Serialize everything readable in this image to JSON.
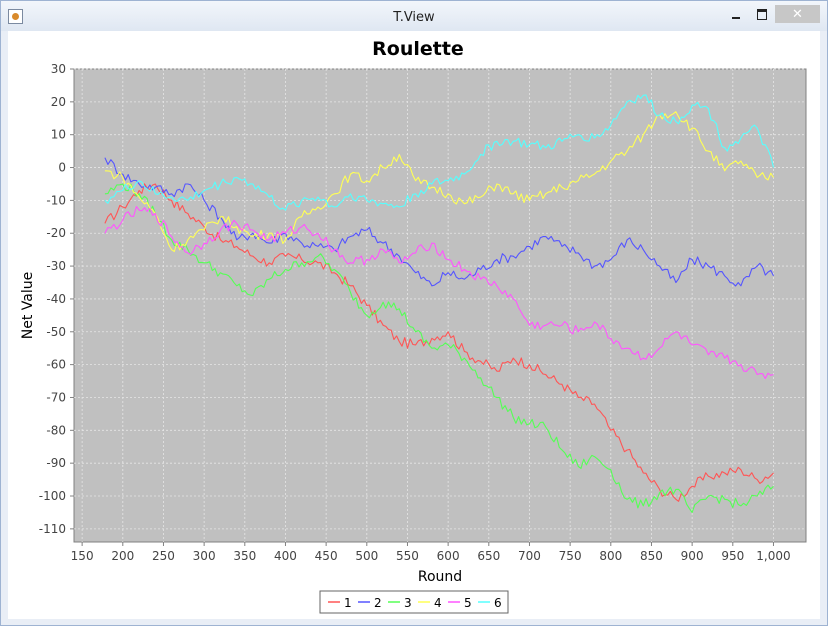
{
  "window": {
    "title": "T.View",
    "close_glyph": "✕"
  },
  "chart_data": {
    "type": "line",
    "title": "Roulette",
    "xlabel": "Round",
    "ylabel": "Net Value",
    "xlim": [
      140,
      1040
    ],
    "ylim": [
      -114,
      30
    ],
    "xticks": [
      150,
      200,
      250,
      300,
      350,
      400,
      450,
      500,
      550,
      600,
      650,
      700,
      750,
      800,
      850,
      900,
      950,
      1000
    ],
    "xtick_labels": [
      "150",
      "200",
      "250",
      "300",
      "350",
      "400",
      "450",
      "500",
      "550",
      "600",
      "650",
      "700",
      "750",
      "800",
      "850",
      "900",
      "950",
      "1,000"
    ],
    "yticks": [
      30,
      20,
      10,
      0,
      -10,
      -20,
      -30,
      -40,
      -50,
      -60,
      -70,
      -80,
      -90,
      -100,
      -110
    ],
    "grid": true,
    "background": "#c0c0c0",
    "legend_position": "bottom-center",
    "series": [
      {
        "name": "1",
        "color": "#ff5555",
        "x": [
          178,
          200,
          220,
          240,
          260,
          280,
          300,
          320,
          340,
          360,
          380,
          400,
          420,
          440,
          460,
          480,
          500,
          520,
          540,
          560,
          580,
          600,
          620,
          640,
          660,
          680,
          700,
          720,
          740,
          760,
          780,
          800,
          820,
          840,
          860,
          880,
          900,
          920,
          940,
          960,
          980,
          1000
        ],
        "y": [
          -17,
          -12,
          -7,
          -5,
          -10,
          -14,
          -18,
          -22,
          -24,
          -27,
          -29,
          -27,
          -28,
          -29,
          -32,
          -36,
          -42,
          -48,
          -53,
          -54,
          -52,
          -50,
          -56,
          -59,
          -62,
          -58,
          -60,
          -63,
          -66,
          -70,
          -72,
          -80,
          -86,
          -93,
          -98,
          -101,
          -97,
          -94,
          -93,
          -92,
          -95,
          -93
        ]
      },
      {
        "name": "2",
        "color": "#5555ff",
        "x": [
          178,
          200,
          220,
          240,
          260,
          280,
          300,
          320,
          340,
          360,
          380,
          400,
          420,
          440,
          460,
          480,
          500,
          520,
          540,
          560,
          580,
          600,
          620,
          640,
          660,
          680,
          700,
          720,
          740,
          760,
          780,
          800,
          820,
          840,
          860,
          880,
          900,
          920,
          940,
          960,
          980,
          1000
        ],
        "y": [
          3,
          -2,
          -5,
          -6,
          -8,
          -5,
          -10,
          -15,
          -22,
          -20,
          -23,
          -20,
          -23,
          -24,
          -25,
          -21,
          -19,
          -23,
          -27,
          -32,
          -36,
          -32,
          -34,
          -31,
          -28,
          -27,
          -24,
          -21,
          -24,
          -26,
          -30,
          -28,
          -22,
          -25,
          -30,
          -35,
          -28,
          -30,
          -33,
          -36,
          -30,
          -33
        ]
      },
      {
        "name": "3",
        "color": "#55ff55",
        "x": [
          178,
          200,
          220,
          240,
          260,
          280,
          300,
          320,
          340,
          360,
          380,
          400,
          420,
          440,
          460,
          480,
          500,
          520,
          540,
          560,
          580,
          600,
          620,
          640,
          660,
          680,
          700,
          720,
          740,
          760,
          780,
          800,
          820,
          840,
          860,
          880,
          900,
          920,
          940,
          960,
          980,
          1000
        ],
        "y": [
          -8,
          -5,
          -8,
          -14,
          -22,
          -25,
          -29,
          -32,
          -36,
          -39,
          -34,
          -31,
          -29,
          -27,
          -31,
          -38,
          -45,
          -41,
          -43,
          -50,
          -55,
          -54,
          -58,
          -64,
          -70,
          -76,
          -78,
          -79,
          -86,
          -91,
          -88,
          -92,
          -101,
          -103,
          -99,
          -98,
          -105,
          -100,
          -101,
          -103,
          -100,
          -97
        ]
      },
      {
        "name": "4",
        "color": "#ffff55",
        "x": [
          178,
          200,
          220,
          240,
          260,
          280,
          300,
          320,
          340,
          360,
          380,
          400,
          420,
          440,
          460,
          480,
          500,
          520,
          540,
          560,
          580,
          600,
          620,
          640,
          660,
          680,
          700,
          720,
          740,
          760,
          780,
          800,
          820,
          840,
          860,
          880,
          900,
          920,
          940,
          960,
          980,
          1000
        ],
        "y": [
          -1,
          -3,
          -9,
          -14,
          -25,
          -22,
          -19,
          -15,
          -18,
          -21,
          -20,
          -22,
          -15,
          -12,
          -8,
          -2,
          -4,
          0,
          4,
          -4,
          -6,
          -8,
          -11,
          -9,
          -5,
          -8,
          -10,
          -8,
          -6,
          -4,
          -2,
          2,
          5,
          10,
          16,
          17,
          12,
          5,
          -1,
          2,
          -3,
          -3
        ]
      },
      {
        "name": "5",
        "color": "#ff55ff",
        "x": [
          178,
          200,
          220,
          240,
          260,
          280,
          300,
          320,
          340,
          360,
          380,
          400,
          420,
          440,
          460,
          480,
          500,
          520,
          540,
          560,
          580,
          600,
          620,
          640,
          660,
          680,
          700,
          720,
          740,
          760,
          780,
          800,
          820,
          840,
          860,
          880,
          900,
          920,
          940,
          960,
          980,
          1000
        ],
        "y": [
          -20,
          -16,
          -13,
          -14,
          -21,
          -26,
          -23,
          -19,
          -17,
          -19,
          -22,
          -20,
          -18,
          -20,
          -25,
          -29,
          -28,
          -25,
          -29,
          -26,
          -23,
          -28,
          -31,
          -34,
          -36,
          -40,
          -48,
          -48,
          -48,
          -50,
          -47,
          -52,
          -55,
          -58,
          -55,
          -50,
          -54,
          -57,
          -58,
          -60,
          -63,
          -63
        ]
      },
      {
        "name": "6",
        "color": "#55ffff",
        "x": [
          178,
          200,
          220,
          240,
          260,
          280,
          300,
          320,
          340,
          360,
          380,
          400,
          420,
          440,
          460,
          480,
          500,
          520,
          540,
          560,
          580,
          600,
          620,
          640,
          660,
          680,
          700,
          720,
          740,
          760,
          780,
          800,
          820,
          840,
          860,
          880,
          900,
          920,
          940,
          960,
          980,
          1000
        ],
        "y": [
          -10,
          -7,
          -4,
          -8,
          -9,
          -10,
          -7,
          -5,
          -3,
          -5,
          -9,
          -13,
          -10,
          -9,
          -12,
          -8,
          -10,
          -11,
          -12,
          -8,
          -5,
          -4,
          -2,
          4,
          8,
          8,
          7,
          6,
          8,
          10,
          9,
          13,
          20,
          22,
          16,
          14,
          19,
          18,
          6,
          9,
          12,
          0
        ]
      }
    ]
  }
}
